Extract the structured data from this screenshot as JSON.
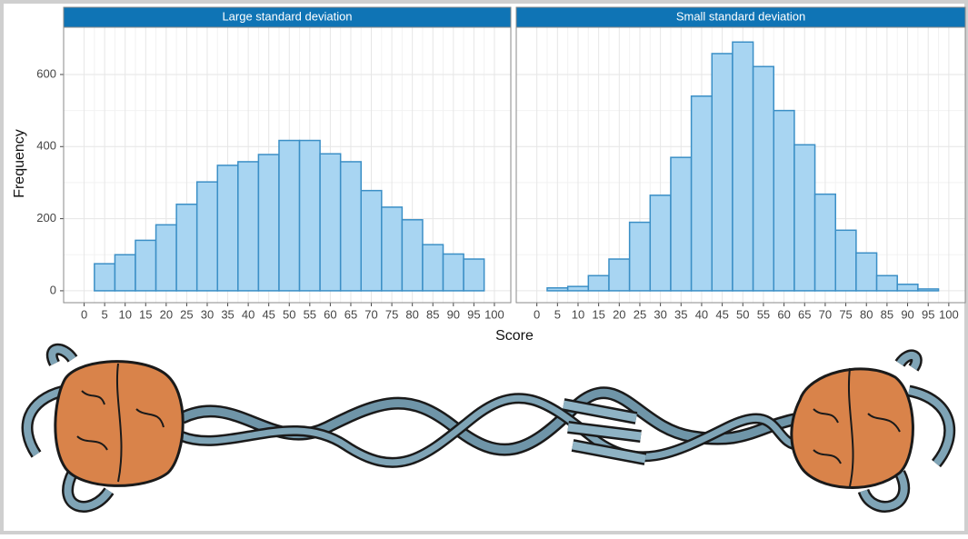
{
  "chart_data": [
    {
      "type": "histogram",
      "title": "Large standard deviation",
      "x_label": "Score",
      "y_label": "Frequency",
      "bins": [
        2.5,
        7.5,
        12.5,
        17.5,
        22.5,
        27.5,
        32.5,
        37.5,
        42.5,
        47.5,
        52.5,
        57.5,
        62.5,
        67.5,
        72.5,
        77.5,
        82.5,
        87.5,
        92.5,
        97.5
      ],
      "values": [
        75,
        100,
        140,
        183,
        240,
        302,
        348,
        358,
        378,
        417,
        417,
        380,
        358,
        278,
        232,
        197,
        128,
        102,
        88
      ],
      "color": "#a8d5f2",
      "edge_color": "#3b8fc6",
      "strip_color": "#0f74b5",
      "xlim": [
        -5,
        104
      ],
      "ylim": [
        -33,
        731
      ],
      "xticks": [
        0,
        5,
        10,
        15,
        20,
        25,
        30,
        35,
        40,
        45,
        50,
        55,
        60,
        65,
        70,
        75,
        80,
        85,
        90,
        95,
        100
      ],
      "yticks": [
        0,
        200,
        400,
        600
      ],
      "grid": true
    },
    {
      "type": "histogram",
      "title": "Small standard deviation",
      "bins": [
        2.5,
        7.5,
        12.5,
        17.5,
        22.5,
        27.5,
        32.5,
        37.5,
        42.5,
        47.5,
        52.5,
        57.5,
        62.5,
        67.5,
        72.5,
        77.5,
        82.5,
        87.5,
        92.5,
        97.5
      ],
      "values": [
        8,
        12,
        42,
        88,
        190,
        265,
        370,
        540,
        658,
        690,
        622,
        500,
        405,
        268,
        168,
        105,
        42,
        18,
        5
      ],
      "color": "#a8d5f2",
      "edge_color": "#3b8fc6",
      "strip_color": "#0f74b5",
      "xlim": [
        -5,
        104
      ],
      "ylim": [
        -33,
        731
      ],
      "xticks": [
        0,
        5,
        10,
        15,
        20,
        25,
        30,
        35,
        40,
        45,
        50,
        55,
        60,
        65,
        70,
        75,
        80,
        85,
        90,
        95,
        100
      ],
      "yticks": [
        0,
        200,
        400,
        600
      ],
      "grid": true
    }
  ]
}
